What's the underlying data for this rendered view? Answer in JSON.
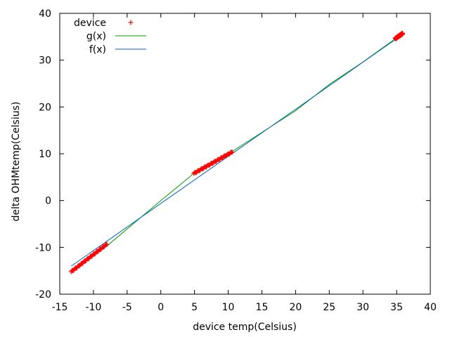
{
  "chart_data": {
    "type": "scatter",
    "xlabel": "device temp(Celsius)",
    "ylabel": "delta OHMtemp(Celsius)",
    "xlim": [
      -15,
      40
    ],
    "ylim": [
      -20,
      40
    ],
    "x_ticks": [
      -15,
      -10,
      -5,
      0,
      5,
      10,
      15,
      20,
      25,
      30,
      35,
      40
    ],
    "y_ticks": [
      -20,
      -10,
      0,
      10,
      20,
      30,
      40
    ],
    "grid": false,
    "legend_position": "top-left",
    "series": [
      {
        "name": "device",
        "kind": "points",
        "marker": "+",
        "color": "#ff0000",
        "clusters": [
          {
            "x_range": [
              -13.3,
              -8.0
            ],
            "y_range": [
              -15.2,
              -9.3
            ]
          },
          {
            "x_range": [
              4.9,
              10.6
            ],
            "y_range": [
              5.8,
              10.4
            ]
          },
          {
            "x_range": [
              34.8,
              35.9
            ],
            "y_range": [
              34.6,
              35.7
            ]
          }
        ]
      },
      {
        "name": "g(x)",
        "kind": "line",
        "color": "#00a000",
        "x": [
          -13.3,
          -8.0,
          0,
          4.9,
          10.6,
          20,
          25,
          30,
          35.9
        ],
        "y": [
          -15.2,
          -9.7,
          0,
          5.8,
          10.5,
          19.2,
          24.8,
          29.6,
          35.7
        ]
      },
      {
        "name": "f(x)",
        "kind": "line",
        "color": "#0060c0",
        "x": [
          -13.3,
          35.9
        ],
        "y": [
          -14.0,
          35.5
        ]
      }
    ]
  }
}
